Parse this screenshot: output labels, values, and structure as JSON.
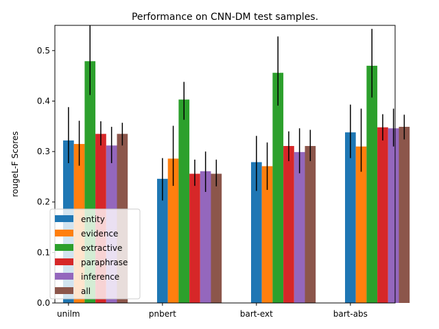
{
  "chart_data": {
    "type": "bar",
    "title": "Performance on CNN-DM test samples.",
    "xlabel": "",
    "ylabel": "rougeL-F Scores",
    "ylim": [
      0,
      0.55
    ],
    "yticks": [
      "0.0",
      "0.1",
      "0.2",
      "0.3",
      "0.4",
      "0.5"
    ],
    "categories": [
      "unilm",
      "pnbert",
      "bart-ext",
      "bart-abs"
    ],
    "grid": false,
    "legend_position": "lower-left",
    "series": [
      {
        "name": "entity",
        "color": "#1f77b4",
        "values": [
          0.322,
          0.246,
          0.279,
          0.338
        ],
        "err_low": [
          0.277,
          0.203,
          0.222,
          0.287
        ],
        "err_high": [
          0.388,
          0.287,
          0.331,
          0.393
        ]
      },
      {
        "name": "evidence",
        "color": "#ff7f0e",
        "values": [
          0.315,
          0.286,
          0.271,
          0.31
        ],
        "err_low": [
          0.272,
          0.232,
          0.224,
          0.26
        ],
        "err_high": [
          0.361,
          0.351,
          0.318,
          0.385
        ]
      },
      {
        "name": "extractive",
        "color": "#2ca02c",
        "values": [
          0.479,
          0.403,
          0.456,
          0.47
        ],
        "err_low": [
          0.412,
          0.363,
          0.391,
          0.407
        ],
        "err_high": [
          0.55,
          0.438,
          0.528,
          0.543
        ]
      },
      {
        "name": "paraphrase",
        "color": "#d62728",
        "values": [
          0.335,
          0.256,
          0.311,
          0.348
        ],
        "err_low": [
          0.312,
          0.232,
          0.281,
          0.322
        ],
        "err_high": [
          0.36,
          0.284,
          0.34,
          0.374
        ]
      },
      {
        "name": "inference",
        "color": "#9467bd",
        "values": [
          0.312,
          0.261,
          0.299,
          0.346
        ],
        "err_low": [
          0.277,
          0.22,
          0.257,
          0.31
        ],
        "err_high": [
          0.349,
          0.3,
          0.346,
          0.385
        ]
      },
      {
        "name": "all",
        "color": "#8c564b",
        "values": [
          0.335,
          0.256,
          0.311,
          0.349
        ],
        "err_low": [
          0.312,
          0.231,
          0.281,
          0.324
        ],
        "err_high": [
          0.357,
          0.284,
          0.343,
          0.373
        ]
      }
    ]
  }
}
